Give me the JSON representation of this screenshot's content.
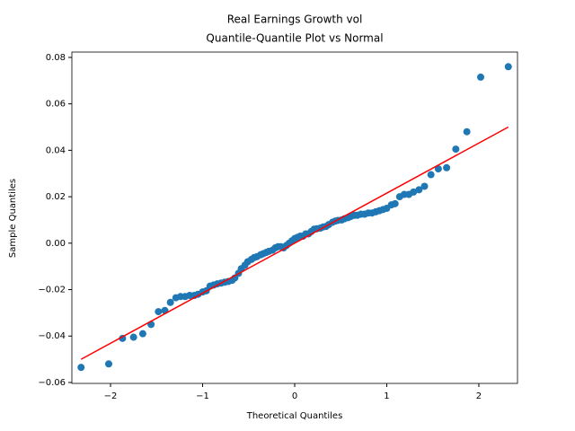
{
  "chart_data": {
    "type": "scatter",
    "title": "Real Earnings Growth vol",
    "subtitle": "Quantile-Quantile Plot vs Normal",
    "x_label": "Theoretical Quantiles",
    "y_label": "Sample Quantiles",
    "color": "#1f77b4",
    "x": [
      -2.32,
      -2.02,
      -1.87,
      -1.75,
      -1.65,
      -1.56,
      -1.48,
      -1.41,
      -1.35,
      -1.29,
      -1.24,
      -1.19,
      -1.14,
      -1.09,
      -1.05,
      -1.0,
      -0.96,
      -0.92,
      -0.88,
      -0.84,
      -0.8,
      -0.76,
      -0.72,
      -0.68,
      -0.65,
      -0.61,
      -0.58,
      -0.54,
      -0.51,
      -0.47,
      -0.44,
      -0.41,
      -0.37,
      -0.34,
      -0.31,
      -0.28,
      -0.24,
      -0.21,
      -0.18,
      -0.15,
      -0.12,
      -0.09,
      -0.06,
      -0.03,
      0.0,
      0.03,
      0.06,
      0.09,
      0.12,
      0.15,
      0.18,
      0.21,
      0.24,
      0.28,
      0.31,
      0.34,
      0.37,
      0.41,
      0.44,
      0.47,
      0.51,
      0.54,
      0.58,
      0.61,
      0.65,
      0.68,
      0.72,
      0.76,
      0.8,
      0.84,
      0.88,
      0.92,
      0.96,
      1.0,
      1.05,
      1.09,
      1.14,
      1.19,
      1.24,
      1.29,
      1.35,
      1.41,
      1.48,
      1.56,
      1.65,
      1.75,
      1.87,
      2.02,
      2.32
    ],
    "values": [
      -0.0535,
      -0.052,
      -0.041,
      -0.0405,
      -0.039,
      -0.035,
      -0.0295,
      -0.029,
      -0.0255,
      -0.0235,
      -0.023,
      -0.023,
      -0.0225,
      -0.0225,
      -0.022,
      -0.021,
      -0.0205,
      -0.0185,
      -0.018,
      -0.0175,
      -0.0172,
      -0.0168,
      -0.0165,
      -0.016,
      -0.015,
      -0.013,
      -0.011,
      -0.0095,
      -0.008,
      -0.007,
      -0.0062,
      -0.0058,
      -0.005,
      -0.0045,
      -0.004,
      -0.0035,
      -0.003,
      -0.002,
      -0.0015,
      -0.0015,
      -0.002,
      -0.001,
      0.0,
      0.001,
      0.002,
      0.0025,
      0.003,
      0.003,
      0.004,
      0.004,
      0.005,
      0.006,
      0.0062,
      0.0065,
      0.007,
      0.0072,
      0.008,
      0.009,
      0.0095,
      0.0098,
      0.01,
      0.0105,
      0.011,
      0.0115,
      0.012,
      0.012,
      0.0125,
      0.0125,
      0.013,
      0.013,
      0.0135,
      0.014,
      0.0145,
      0.015,
      0.0165,
      0.017,
      0.02,
      0.021,
      0.021,
      0.022,
      0.023,
      0.0245,
      0.0295,
      0.032,
      0.0325,
      0.0405,
      0.048,
      0.0715,
      0.076
    ],
    "line": {
      "color": "#ff0000",
      "x": [
        -2.32,
        2.32
      ],
      "y": [
        -0.05,
        0.05
      ]
    },
    "xlim": [
      -2.42,
      2.42
    ],
    "ylim": [
      -0.0604,
      0.0823
    ],
    "xticks": [
      {
        "value": -2,
        "label": "−2"
      },
      {
        "value": -1,
        "label": "−1"
      },
      0,
      1,
      2
    ],
    "yticks": [
      {
        "value": -0.06,
        "label": "−0.06"
      },
      {
        "value": -0.04,
        "label": "−0.04"
      },
      {
        "value": -0.02,
        "label": "−0.02"
      },
      {
        "value": 0,
        "label": "0.00"
      },
      0.02,
      0.04,
      0.06,
      0.08
    ]
  }
}
